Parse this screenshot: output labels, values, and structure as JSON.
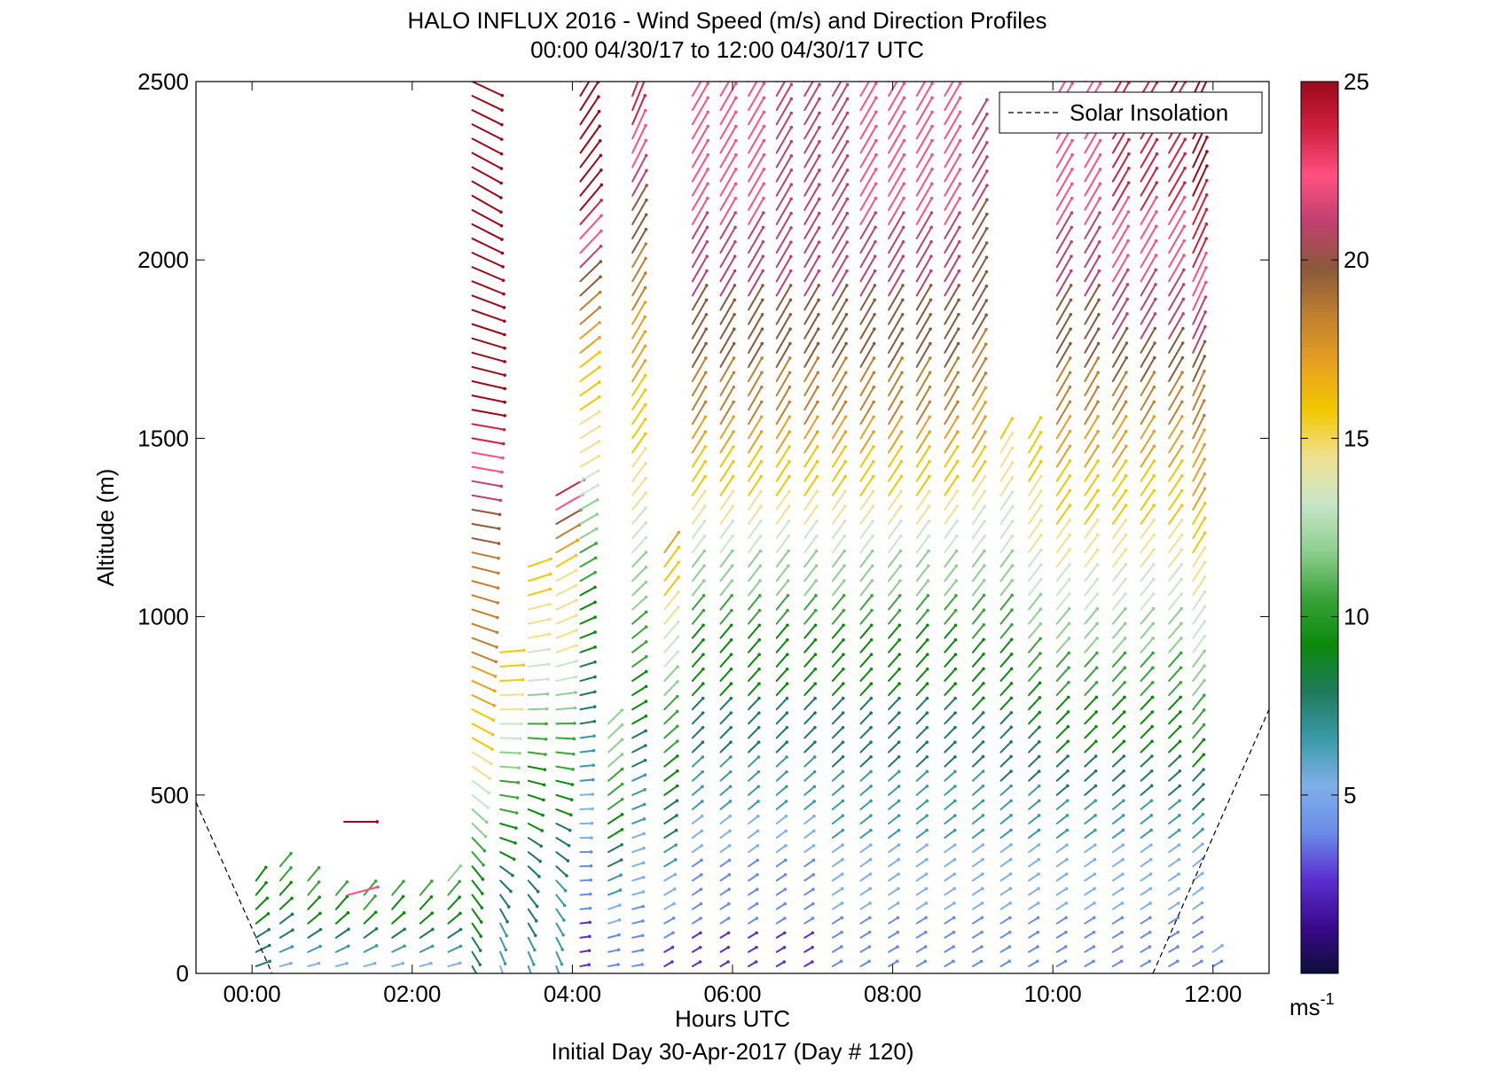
{
  "chart_data": {
    "type": "wind-barb profile (scatter of arrows)",
    "title": "HALO INFLUX 2016 - Wind Speed (m/s) and Direction Profiles",
    "subtitle": "00:00 04/30/17 to 12:00 04/30/17  UTC",
    "xlabel": "Hours UTC",
    "ylabel": "Altitude (m)",
    "footer": "Initial Day 30-Apr-2017 (Day # 120)",
    "xlim_hours": [
      -0.7,
      12.7
    ],
    "ylim": [
      0,
      2500
    ],
    "x_ticks": [
      {
        "hour": 0,
        "label": "00:00"
      },
      {
        "hour": 2,
        "label": "02:00"
      },
      {
        "hour": 4,
        "label": "04:00"
      },
      {
        "hour": 6,
        "label": "06:00"
      },
      {
        "hour": 8,
        "label": "08:00"
      },
      {
        "hour": 10,
        "label": "10:00"
      },
      {
        "hour": 12,
        "label": "12:00"
      }
    ],
    "y_ticks": [
      0,
      500,
      1000,
      1500,
      2000,
      2500
    ],
    "legend": {
      "entries": [
        "Solar Insolation"
      ],
      "placement": "top-right"
    },
    "colorbar": {
      "range": [
        0,
        25
      ],
      "ticks": [
        5,
        10,
        15,
        20,
        25
      ],
      "unit_label": "ms",
      "unit_exponent": "-1",
      "colors": [
        "#0d0d3a",
        "#3a0a8c",
        "#5a2fd0",
        "#6a8ce8",
        "#7fb0e8",
        "#3b9aa8",
        "#1f7a5c",
        "#0a8a0a",
        "#3aa33a",
        "#8fcf8f",
        "#c8e6c8",
        "#f0e090",
        "#f2c800",
        "#e8a020",
        "#c08030",
        "#8a5a3a",
        "#c04070",
        "#ff5080",
        "#d02040",
        "#9a0a1a"
      ]
    },
    "solar_insolation": [
      {
        "hour": -0.7,
        "alt": 480
      },
      {
        "hour": 0.25,
        "alt": 0
      },
      {
        "hour": 11.25,
        "alt": 0
      },
      {
        "hour": 12.7,
        "alt": 740
      }
    ],
    "profiles": [
      {
        "hour": 0.05,
        "top": 280,
        "speed": [
          8,
          8.5,
          9,
          9,
          10
        ],
        "dir": [
          70,
          60,
          50,
          40,
          35
        ]
      },
      {
        "hour": 0.35,
        "top": 300,
        "speed": [
          5,
          8,
          9,
          10,
          10
        ],
        "dir": [
          75,
          60,
          50,
          40,
          40
        ]
      },
      {
        "hour": 0.7,
        "top": 260,
        "speed": [
          5,
          8,
          9,
          10,
          10
        ],
        "dir": [
          75,
          60,
          50,
          40,
          40
        ]
      },
      {
        "hour": 1.05,
        "top": 240,
        "speed": [
          5,
          8,
          9,
          10,
          10
        ],
        "dir": [
          75,
          60,
          50,
          40,
          40
        ]
      },
      {
        "hour": 1.4,
        "top": 220,
        "speed": [
          5,
          8,
          9,
          10,
          11
        ],
        "dir": [
          75,
          60,
          50,
          40,
          40
        ]
      },
      {
        "hour": 1.75,
        "top": 240,
        "speed": [
          5,
          8,
          9,
          10,
          11
        ],
        "dir": [
          75,
          60,
          50,
          40,
          40
        ]
      },
      {
        "hour": 2.1,
        "top": 250,
        "speed": [
          5,
          8,
          9,
          10,
          12
        ],
        "dir": [
          75,
          60,
          50,
          40,
          40
        ]
      },
      {
        "hour": 2.45,
        "top": 260,
        "speed": [
          6,
          8,
          9,
          10,
          12
        ],
        "dir": [
          75,
          60,
          50,
          40,
          40
        ]
      },
      {
        "hour": 2.75,
        "top": 2500,
        "speed": [
          8,
          10,
          15,
          18,
          19,
          24,
          25,
          24,
          24
        ],
        "dir": [
          150,
          140,
          120,
          110,
          100,
          100,
          110,
          120,
          115
        ]
      },
      {
        "hour": 3.1,
        "top": 900,
        "speed": [
          6,
          8,
          9,
          11,
          14,
          16
        ],
        "dir": [
          160,
          150,
          110,
          95,
          90,
          85
        ]
      },
      {
        "hour": 3.45,
        "top": 1160,
        "speed": [
          7,
          8,
          9,
          11,
          14,
          16
        ],
        "dir": [
          160,
          140,
          110,
          90,
          80,
          70
        ]
      },
      {
        "hour": 3.8,
        "top": 1360,
        "speed": [
          7,
          7,
          9,
          11,
          14,
          15,
          24
        ],
        "dir": [
          160,
          140,
          110,
          90,
          70,
          60,
          60
        ]
      },
      {
        "hour": 4.1,
        "top": 2500,
        "speed": [
          3,
          5,
          8,
          10,
          14,
          17,
          24,
          24
        ],
        "dir": [
          80,
          90,
          80,
          60,
          60,
          50,
          40,
          30
        ]
      },
      {
        "hour": 4.45,
        "top": 700,
        "speed": [
          4,
          6,
          9,
          11,
          12
        ],
        "dir": [
          80,
          70,
          60,
          50,
          45
        ]
      },
      {
        "hour": 4.75,
        "top": 2500,
        "speed": [
          4,
          6,
          9,
          12,
          15,
          17,
          20,
          24
        ],
        "dir": [
          80,
          70,
          60,
          45,
          35,
          30,
          30,
          20
        ]
      },
      {
        "hour": 5.15,
        "top": 1200,
        "speed": [
          3,
          6,
          9,
          11,
          14,
          17
        ],
        "dir": [
          60,
          60,
          55,
          45,
          40,
          35
        ]
      },
      {
        "hour": 5.5,
        "top": 2500,
        "speed": [
          3,
          5,
          8,
          10,
          14,
          18,
          20,
          22,
          22
        ],
        "dir": [
          60,
          55,
          45,
          40,
          35,
          30,
          30,
          30,
          30
        ]
      },
      {
        "hour": 5.85,
        "top": 2500,
        "speed": [
          3,
          5,
          8,
          10,
          14,
          18,
          20,
          22,
          22
        ],
        "dir": [
          60,
          55,
          45,
          40,
          35,
          30,
          30,
          30,
          30
        ]
      },
      {
        "hour": 6.2,
        "top": 2500,
        "speed": [
          3,
          5,
          8,
          10,
          14,
          18,
          20,
          22,
          22
        ],
        "dir": [
          60,
          55,
          45,
          40,
          35,
          30,
          30,
          30,
          30
        ]
      },
      {
        "hour": 6.55,
        "top": 2500,
        "speed": [
          3,
          5,
          8,
          10,
          14,
          18,
          20,
          21,
          21
        ],
        "dir": [
          60,
          55,
          45,
          40,
          35,
          30,
          30,
          30,
          30
        ]
      },
      {
        "hour": 6.9,
        "top": 2500,
        "speed": [
          3,
          5,
          8,
          10,
          14,
          18,
          20,
          21,
          21
        ],
        "dir": [
          60,
          55,
          45,
          40,
          35,
          30,
          30,
          30,
          30
        ]
      },
      {
        "hour": 7.25,
        "top": 2500,
        "speed": [
          4,
          6,
          8,
          10,
          14,
          18,
          20,
          21,
          21
        ],
        "dir": [
          60,
          55,
          45,
          40,
          35,
          30,
          30,
          30,
          30
        ]
      },
      {
        "hour": 7.6,
        "top": 2500,
        "speed": [
          4,
          6,
          8,
          10,
          14,
          18,
          20,
          22,
          22
        ],
        "dir": [
          60,
          55,
          45,
          40,
          35,
          30,
          30,
          30,
          30
        ]
      },
      {
        "hour": 7.95,
        "top": 2500,
        "speed": [
          4,
          6,
          8,
          10,
          14,
          18,
          20,
          22,
          22
        ],
        "dir": [
          60,
          55,
          45,
          40,
          35,
          30,
          30,
          30,
          30
        ]
      },
      {
        "hour": 8.3,
        "top": 2500,
        "speed": [
          4,
          6,
          8,
          10,
          14,
          18,
          20,
          22,
          22
        ],
        "dir": [
          60,
          55,
          45,
          40,
          35,
          30,
          30,
          30,
          30
        ]
      },
      {
        "hour": 8.65,
        "top": 2500,
        "speed": [
          4,
          6,
          8,
          10,
          14,
          18,
          20,
          22,
          22
        ],
        "dir": [
          60,
          55,
          45,
          40,
          35,
          30,
          30,
          30,
          30
        ]
      },
      {
        "hour": 9.0,
        "top": 2400,
        "speed": [
          4,
          6,
          8,
          10,
          13,
          17,
          19,
          20,
          20
        ],
        "dir": [
          60,
          55,
          45,
          40,
          35,
          30,
          30,
          30,
          30
        ]
      },
      {
        "hour": 9.35,
        "top": 1500,
        "speed": [
          4,
          6,
          8,
          10,
          13,
          15
        ],
        "dir": [
          60,
          55,
          45,
          40,
          35,
          30
        ]
      },
      {
        "hour": 9.7,
        "top": 1500,
        "speed": [
          4,
          6,
          8,
          11,
          14,
          16
        ],
        "dir": [
          60,
          55,
          45,
          40,
          35,
          30
        ]
      },
      {
        "hour": 10.05,
        "top": 2500,
        "speed": [
          4,
          6,
          9,
          12,
          15,
          18,
          20,
          22,
          22
        ],
        "dir": [
          60,
          55,
          45,
          40,
          35,
          30,
          30,
          30,
          30
        ]
      },
      {
        "hour": 10.4,
        "top": 2500,
        "speed": [
          4,
          6,
          9,
          12,
          15,
          18,
          20,
          22,
          22
        ],
        "dir": [
          60,
          55,
          45,
          40,
          35,
          30,
          30,
          30,
          30
        ]
      },
      {
        "hour": 10.75,
        "top": 2500,
        "speed": [
          4,
          6,
          9,
          12,
          15,
          18,
          21,
          23,
          23
        ],
        "dir": [
          60,
          55,
          45,
          40,
          35,
          30,
          30,
          30,
          30
        ]
      },
      {
        "hour": 11.1,
        "top": 2500,
        "speed": [
          4,
          6,
          9,
          12,
          15,
          18,
          21,
          23,
          23
        ],
        "dir": [
          60,
          55,
          45,
          40,
          35,
          30,
          30,
          30,
          30
        ]
      },
      {
        "hour": 11.45,
        "top": 2500,
        "speed": [
          4,
          6,
          9,
          12,
          15,
          18,
          21,
          23,
          24
        ],
        "dir": [
          60,
          55,
          45,
          40,
          35,
          30,
          30,
          30,
          30
        ]
      },
      {
        "hour": 11.75,
        "top": 2500,
        "speed": [
          4,
          6,
          10,
          13,
          16,
          18,
          22,
          24,
          24
        ],
        "dir": [
          60,
          50,
          40,
          35,
          30,
          25,
          25,
          25,
          25
        ]
      },
      {
        "hour": 12.0,
        "top": 60,
        "speed": [
          4,
          5
        ],
        "dir": [
          60,
          55
        ]
      }
    ],
    "isolated_vectors": [
      {
        "hour": 1.15,
        "alt": 425,
        "speed": 24,
        "dir": 90
      },
      {
        "hour": 1.2,
        "alt": 220,
        "speed": 22,
        "dir": 75
      }
    ]
  }
}
